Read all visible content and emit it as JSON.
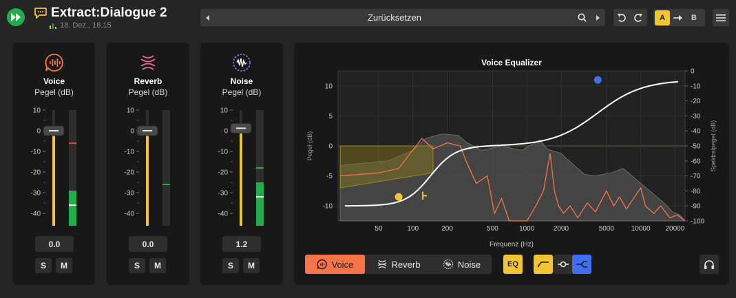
{
  "header": {
    "title": "Extract:Dialogue 2",
    "date": "18. Dez., 18.15",
    "preset": "Zurücksetzen",
    "ab_a": "A",
    "ab_b": "B"
  },
  "channels": [
    {
      "name": "Voice",
      "unit": "Pegel (dB)",
      "value": "0.0",
      "solo": "S",
      "mute": "M",
      "fader_db": 0,
      "meter_db": -29,
      "peak_db": -6,
      "rms_db": -36,
      "accent": "#f7744a"
    },
    {
      "name": "Reverb",
      "unit": "Pegel (dB)",
      "value": "0.0",
      "solo": "S",
      "mute": "M",
      "fader_db": 0,
      "meter_db": null,
      "peak_db": -26,
      "rms_db": null,
      "accent": "#f0679b"
    },
    {
      "name": "Noise",
      "unit": "Pegel (dB)",
      "value": "1.2",
      "solo": "S",
      "mute": "M",
      "fader_db": 1.2,
      "meter_db": -25,
      "peak_db": -18,
      "rms_db": -32,
      "accent": "#8b73ef"
    }
  ],
  "meter_scale": [
    "10",
    "0",
    "-10",
    "-20",
    "-30",
    "-40"
  ],
  "meter_range": [
    -46,
    10
  ],
  "eq": {
    "title": "Voice Equalizer",
    "xlabel": "Frequenz (Hz)",
    "ylabel_left": "Pegel (dB)",
    "ylabel_right": "Spektralpegel (dB)",
    "x_ticks": [
      "50",
      "100",
      "200",
      "500",
      "1000",
      "2000",
      "5000",
      "10000",
      "20000"
    ],
    "y_left_ticks": [
      "10",
      "5",
      "0",
      "-5",
      "-10"
    ],
    "y_right_ticks": [
      "0",
      "-10",
      "-20",
      "-30",
      "-40",
      "-50",
      "-60",
      "-70",
      "-80",
      "-90",
      "-100"
    ],
    "tabs": [
      "Voice",
      "Reverb",
      "Noise"
    ],
    "active_tab": "Voice",
    "eq_button": "EQ",
    "low_filter_hz": 75,
    "high_shelf_hz": 4200,
    "curve_color": "#ffffff",
    "spectrum_color": "#f7744a"
  },
  "colors": {
    "accent_yellow": "#f5c431",
    "accent_orange": "#f7744a",
    "accent_blue": "#3d6ef5",
    "accent_green": "#1fae4b"
  }
}
